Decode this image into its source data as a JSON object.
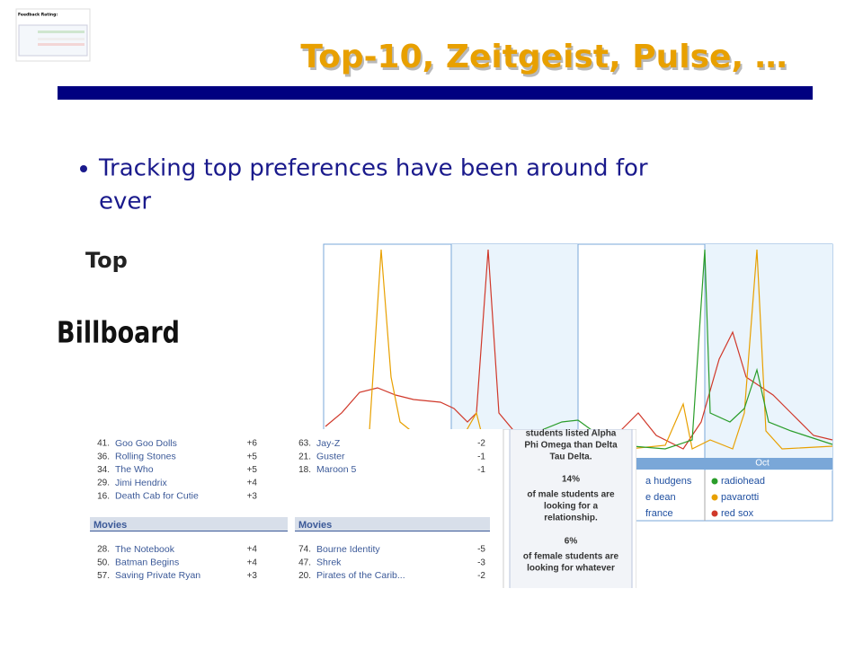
{
  "header": {
    "title": "Top-10, Zeitgeist, Pulse, …"
  },
  "bullet": {
    "lines": [
      "Tracking top preferences have been around for",
      "ever"
    ]
  },
  "logos": {
    "top": "Top",
    "billboard": "Billboard"
  },
  "feedback": {
    "title": "Feedback Rating:"
  },
  "trends": {
    "month": "Oct",
    "legend": [
      {
        "name": "a hudgens",
        "color": "#2a9d2a"
      },
      {
        "name": "e dean",
        "color": "#e8a000"
      },
      {
        "name": "france",
        "color": "#d0382a"
      },
      {
        "name": "radiohead",
        "color": "#2a9d2a"
      },
      {
        "name": "pavarotti",
        "color": "#e8a000"
      },
      {
        "name": "red sox",
        "color": "#d0382a"
      }
    ]
  },
  "facebook": {
    "music_left": [
      [
        "41.",
        "Goo Goo Dolls",
        "+6"
      ],
      [
        "36.",
        "Rolling Stones",
        "+5"
      ],
      [
        "34.",
        "The Who",
        "+5"
      ],
      [
        "29.",
        "Jimi Hendrix",
        "+4"
      ],
      [
        "16.",
        "Death Cab for Cutie",
        "+3"
      ]
    ],
    "music_right": [
      [
        "63.",
        "Jay-Z",
        "-2"
      ],
      [
        "21.",
        "Guster",
        "-1"
      ],
      [
        "18.",
        "Maroon 5",
        "-1"
      ]
    ],
    "movies_heading": "Movies",
    "movies_left": [
      [
        "28.",
        "The Notebook",
        "+4"
      ],
      [
        "50.",
        "Batman Begins",
        "+4"
      ],
      [
        "57.",
        "Saving Private Ryan",
        "+3"
      ]
    ],
    "movies_right": [
      [
        "74.",
        "Bourne Identity",
        "-5"
      ],
      [
        "47.",
        "Shrek",
        "-3"
      ],
      [
        "20.",
        "Pirates of the Carib...",
        "-2"
      ]
    ],
    "stats": [
      "students listed Alpha",
      "Phi Omega than Delta",
      "Tau Delta.",
      "14%",
      "of male students are",
      "looking for a",
      "relationship.",
      "6%",
      "of female students are",
      "looking for whatever"
    ]
  }
}
